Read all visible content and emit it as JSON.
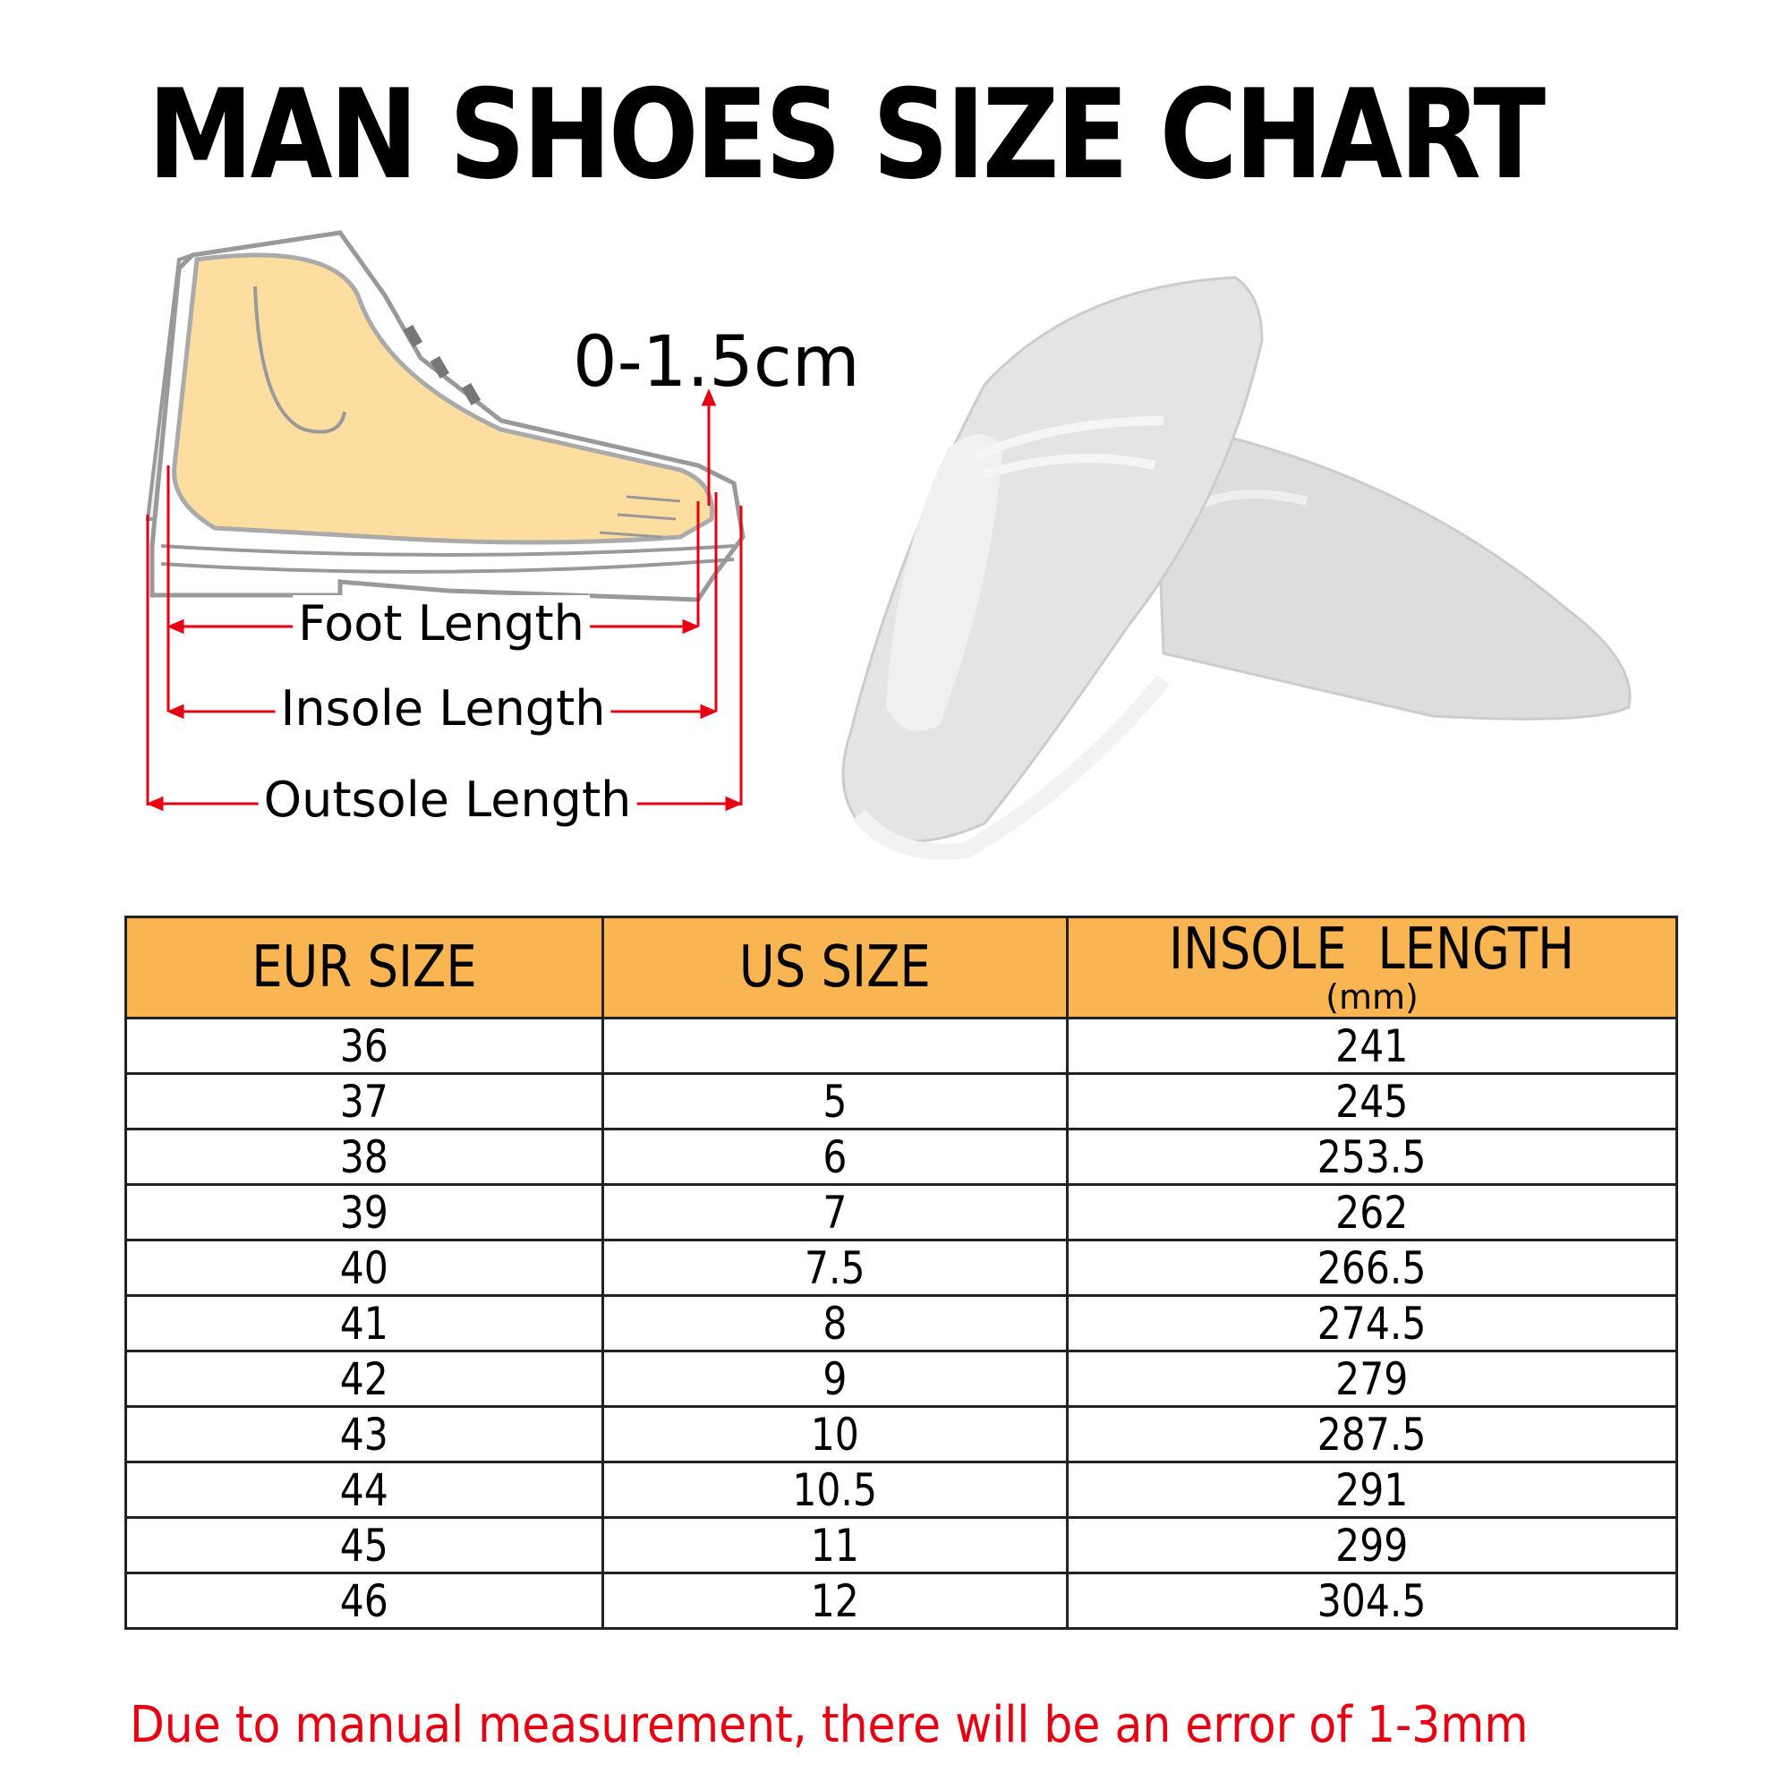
{
  "title": "MAN SHOES SIZE CHART",
  "diagram": {
    "gap_label": "0-1.5cm",
    "foot_length": "Foot Length",
    "insole_length": "Insole Length",
    "outsole_length": "Outsole Length",
    "arrow_color": "#e60012",
    "foot_color": "#fddea0"
  },
  "table": {
    "header_color": "#f8b551",
    "headers": [
      "EUR SIZE",
      "US SIZE",
      "INSOLE  LENGTH"
    ],
    "header_unit": "(mm)",
    "rows": [
      [
        "36",
        "",
        "241"
      ],
      [
        "37",
        "5",
        "245"
      ],
      [
        "38",
        "6",
        "253.5"
      ],
      [
        "39",
        "7",
        "262"
      ],
      [
        "40",
        "7.5",
        "266.5"
      ],
      [
        "41",
        "8",
        "274.5"
      ],
      [
        "42",
        "9",
        "279"
      ],
      [
        "43",
        "10",
        "287.5"
      ],
      [
        "44",
        "10.5",
        "291"
      ],
      [
        "45",
        "11",
        "299"
      ],
      [
        "46",
        "12",
        "304.5"
      ]
    ]
  },
  "note": "Due to manual measurement, there will be an error of 1-3mm"
}
